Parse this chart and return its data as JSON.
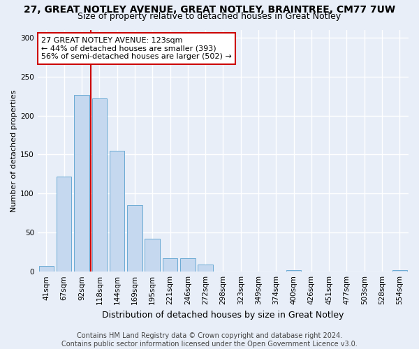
{
  "title": "27, GREAT NOTLEY AVENUE, GREAT NOTLEY, BRAINTREE, CM77 7UW",
  "subtitle": "Size of property relative to detached houses in Great Notley",
  "xlabel": "Distribution of detached houses by size in Great Notley",
  "ylabel": "Number of detached properties",
  "categories": [
    "41sqm",
    "67sqm",
    "92sqm",
    "118sqm",
    "144sqm",
    "169sqm",
    "195sqm",
    "221sqm",
    "246sqm",
    "272sqm",
    "298sqm",
    "323sqm",
    "349sqm",
    "374sqm",
    "400sqm",
    "426sqm",
    "451sqm",
    "477sqm",
    "503sqm",
    "528sqm",
    "554sqm"
  ],
  "values": [
    7,
    122,
    226,
    222,
    155,
    85,
    42,
    17,
    17,
    9,
    0,
    0,
    0,
    0,
    2,
    0,
    0,
    0,
    0,
    0,
    2
  ],
  "bar_color": "#c5d8ef",
  "bar_edge_color": "#6aaad4",
  "background_color": "#e8eef8",
  "grid_color": "#ffffff",
  "property_line_index": 3,
  "annotation_text": "27 GREAT NOTLEY AVENUE: 123sqm\n← 44% of detached houses are smaller (393)\n56% of semi-detached houses are larger (502) →",
  "annotation_box_color": "#ffffff",
  "annotation_box_edge": "#cc0000",
  "vline_color": "#cc0000",
  "footer": "Contains HM Land Registry data © Crown copyright and database right 2024.\nContains public sector information licensed under the Open Government Licence v3.0.",
  "ylim": [
    0,
    310
  ],
  "yticks": [
    0,
    50,
    100,
    150,
    200,
    250,
    300
  ],
  "title_fontsize": 10,
  "subtitle_fontsize": 9,
  "xlabel_fontsize": 9,
  "ylabel_fontsize": 8,
  "tick_fontsize": 7.5,
  "footer_fontsize": 7,
  "annotation_fontsize": 8
}
